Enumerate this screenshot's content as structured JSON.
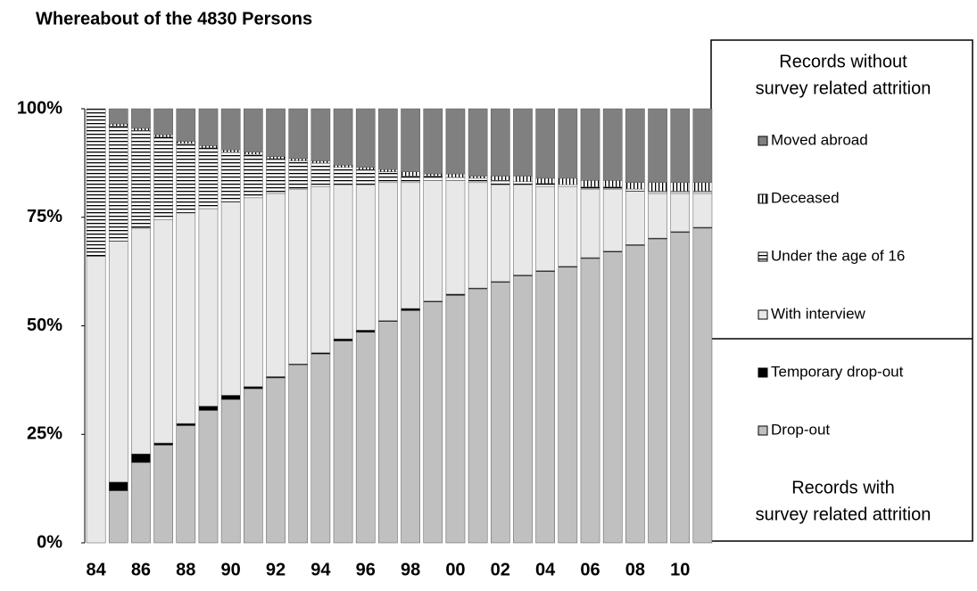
{
  "chart_data": {
    "type": "stacked_bar",
    "title": "Whereabout of the 4830 Persons",
    "categories": [
      "84",
      null,
      "86",
      null,
      "88",
      null,
      "90",
      null,
      "92",
      null,
      "94",
      null,
      "96",
      null,
      "98",
      null,
      "00",
      null,
      "02",
      null,
      "04",
      null,
      "06",
      null,
      "08",
      null,
      "10",
      null
    ],
    "series": [
      {
        "name": "Drop-out",
        "color": "#c0c0c0",
        "values": [
          0,
          12,
          18.5,
          22.5,
          27,
          30.5,
          33,
          35.5,
          38,
          41,
          43.5,
          46.5,
          48.5,
          51,
          53.5,
          55.5,
          57,
          58.5,
          60,
          61.5,
          62.5,
          63.5,
          65.5,
          67,
          68.5,
          70,
          71.5,
          72.5
        ]
      },
      {
        "name": "Temporary drop-out",
        "color": "#000000",
        "values": [
          0,
          2,
          2,
          0.5,
          0.5,
          1,
          1,
          0.5,
          0.3,
          0.2,
          0.3,
          0.5,
          0.5,
          0.2,
          0.5,
          0.2,
          0.3,
          0.2,
          0.2,
          0.2,
          0.2,
          0.2,
          0.2,
          0.2,
          0.2,
          0.2,
          0.2,
          0.2
        ]
      },
      {
        "name": "With interview",
        "color": "#e8e8e8",
        "values": [
          66,
          55.5,
          52,
          51.5,
          48.5,
          45.5,
          44.5,
          43.5,
          42.2,
          40.3,
          38.2,
          35.5,
          33.5,
          31.8,
          29,
          27.8,
          26.2,
          24.3,
          22.3,
          20.8,
          19.3,
          18.3,
          15.8,
          14.3,
          12.3,
          10.3,
          8.8,
          7.8
        ]
      },
      {
        "name": "Under the age of 16",
        "color": "#000000",
        "pattern": "horizontal",
        "values": [
          34,
          26.5,
          22.5,
          19,
          16,
          14,
          11.5,
          10,
          8,
          6.5,
          5.5,
          4,
          3.5,
          2.5,
          1.5,
          1,
          0.7,
          1,
          1,
          0.7,
          0.8,
          0.5,
          0.5,
          0.5,
          0.5,
          0.5,
          0.5,
          0.5
        ]
      },
      {
        "name": "Deceased",
        "color": "#000000",
        "pattern": "vertical",
        "values": [
          0,
          0.5,
          0.5,
          0.5,
          0.5,
          0.5,
          0.5,
          0.5,
          0.5,
          0.5,
          0.5,
          0.5,
          0.5,
          0.5,
          1,
          0.5,
          0.8,
          0.5,
          1,
          1.3,
          1.2,
          1.5,
          1.5,
          1.5,
          1.5,
          2,
          2,
          2
        ]
      },
      {
        "name": "Moved abroad",
        "color": "#808080",
        "values": [
          0,
          3.5,
          4.5,
          6,
          7.5,
          8.5,
          9.5,
          10,
          11,
          11.5,
          12,
          13,
          13.5,
          14,
          14.5,
          15,
          15,
          15.5,
          15.5,
          15.5,
          16,
          16,
          16.5,
          16.5,
          17,
          17,
          17,
          17
        ]
      }
    ],
    "legend_groups": [
      {
        "lines": [
          "Records without",
          "survey related attrition"
        ]
      },
      {
        "lines": [
          "Records with",
          "survey related attrition"
        ]
      }
    ],
    "ylim": [
      0,
      100
    ],
    "yticks": [
      {
        "value": 0,
        "label": "0%"
      },
      {
        "value": 25,
        "label": "25%"
      },
      {
        "value": 50,
        "label": "50%"
      },
      {
        "value": 75,
        "label": "75%"
      },
      {
        "value": 100,
        "label": "100%"
      }
    ]
  }
}
